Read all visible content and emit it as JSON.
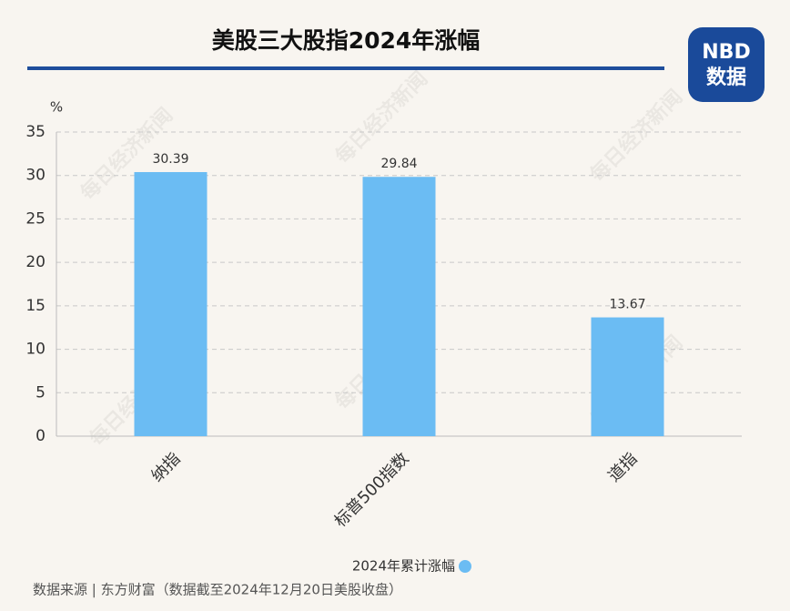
{
  "chart_data": {
    "type": "bar",
    "title": "美股三大股指2024年涨幅",
    "y_label": "%",
    "categories": [
      "纳指",
      "标普500指数",
      "道指"
    ],
    "series": [
      {
        "name": "2024年累计涨幅",
        "color": "#6bbcf3",
        "values": [
          30.39,
          29.84,
          13.67
        ]
      }
    ],
    "ylim": [
      0,
      35
    ],
    "yticks": [
      0,
      5,
      10,
      15,
      20,
      25,
      30,
      35
    ],
    "grid": true,
    "legend": "bottom",
    "source": "数据来源 | 东方财富（数据截至2024年12月20日美股收盘）",
    "logo": {
      "top": "NBD",
      "bottom": "数据"
    },
    "watermark": "每日经济新闻"
  }
}
